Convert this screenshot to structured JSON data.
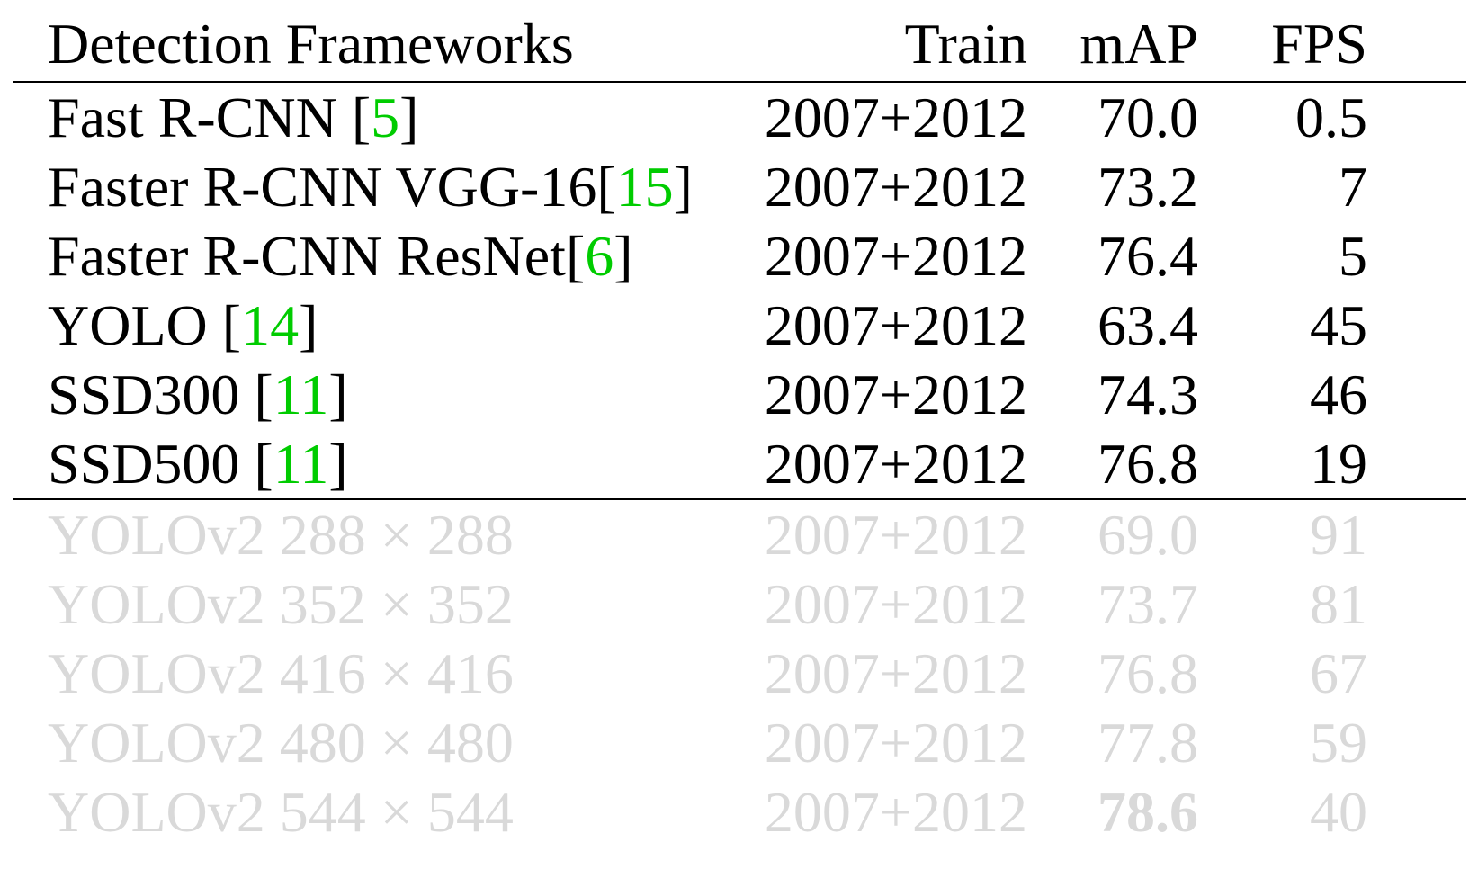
{
  "header": {
    "framework": "Detection Frameworks",
    "train": "Train",
    "map": "mAP",
    "fps": "FPS"
  },
  "rows": [
    {
      "name": "Fast R-CNN [",
      "cite": "5",
      "close": "]",
      "train": "2007+2012",
      "map": "70.0",
      "fps": "0.5"
    },
    {
      "name": "Faster R-CNN VGG-16[",
      "cite": "15",
      "close": "]",
      "train": "2007+2012",
      "map": "73.2",
      "fps": "7"
    },
    {
      "name": "Faster R-CNN ResNet[",
      "cite": "6",
      "close": "]",
      "train": "2007+2012",
      "map": "76.4",
      "fps": "5"
    },
    {
      "name": "YOLO [",
      "cite": "14",
      "close": "]",
      "train": "2007+2012",
      "map": "63.4",
      "fps": "45"
    },
    {
      "name": "SSD300 [",
      "cite": "11",
      "close": "]",
      "train": "2007+2012",
      "map": "74.3",
      "fps": "46"
    },
    {
      "name": "SSD500 [",
      "cite": "11",
      "close": "]",
      "train": "2007+2012",
      "map": "76.8",
      "fps": "19"
    }
  ],
  "yolo_rows": [
    {
      "name": "YOLOv2 288 × 288",
      "train": "2007+2012",
      "map": "69.0",
      "fps": "91"
    },
    {
      "name": "YOLOv2 352 × 352",
      "train": "2007+2012",
      "map": "73.7",
      "fps": "81"
    },
    {
      "name": "YOLOv2 416 × 416",
      "train": "2007+2012",
      "map": "76.8",
      "fps": "67"
    },
    {
      "name": "YOLOv2 480 × 480",
      "train": "2007+2012",
      "map": "77.8",
      "fps": "59"
    },
    {
      "name": "YOLOv2 544 × 544",
      "train": "2007+2012",
      "map": "78.6",
      "fps": "40"
    }
  ],
  "colors": {
    "citation": "#00cc00",
    "faded_text": "#d9d9d9"
  }
}
